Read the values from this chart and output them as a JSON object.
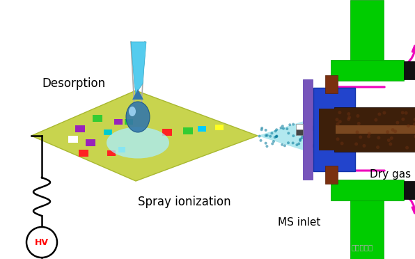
{
  "fig_width": 5.96,
  "fig_height": 3.72,
  "bg_color": "#ffffff",
  "label_desorption": "Desorption",
  "label_spray": "Spray ionization",
  "label_ms": "MS inlet",
  "label_dry": "Dry gas",
  "label_hv": "HV",
  "plate_color": "#c8d44e",
  "green_color": "#00dd00",
  "brown_color": "#3d1f0a",
  "blue_color": "#2244cc",
  "purple_color": "#7755bb",
  "magenta_color": "#ee00bb",
  "cyan_spray": "#44bbcc"
}
